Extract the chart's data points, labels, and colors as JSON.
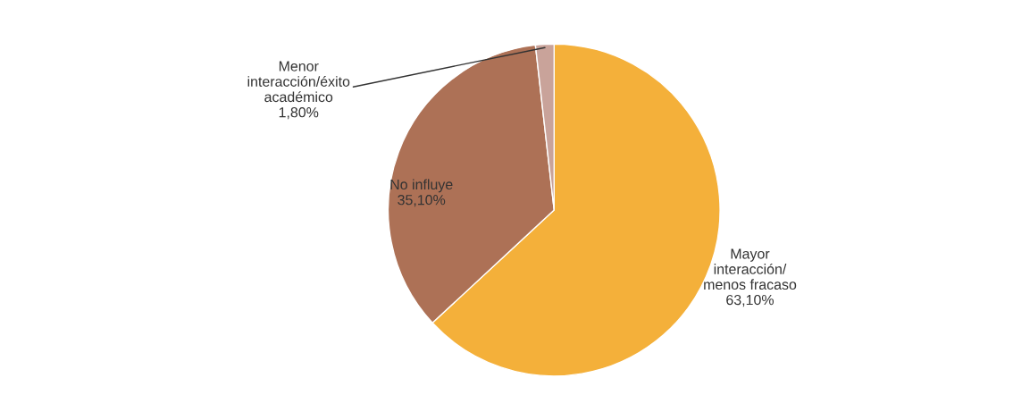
{
  "chart_data": {
    "type": "pie",
    "categories": [
      "Mayor\ninteracción/\nmenos fracaso",
      "No influye",
      "Menor\ninteracción/éxito\nacadémico"
    ],
    "values": [
      63.1,
      35.1,
      1.8
    ],
    "value_labels": [
      "63,10%",
      "35,10%",
      "1,80%"
    ],
    "colors": [
      "#f4b03a",
      "#ad7156",
      "#c9a39a"
    ]
  }
}
